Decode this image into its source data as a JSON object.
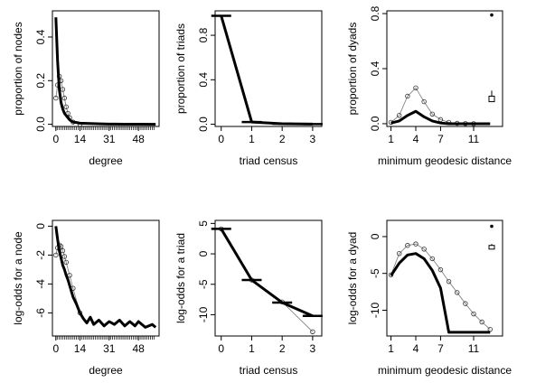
{
  "chart_data": [
    {
      "type": "line",
      "xlabel": "degree",
      "ylabel": "proportion of nodes",
      "x_ticks": [
        0,
        14,
        31,
        48
      ],
      "y_ticks": [
        0.0,
        0.2,
        0.4
      ],
      "y_tick_labels": [
        "0.0",
        "0.2",
        "0.4"
      ],
      "xlim": [
        -2,
        60
      ],
      "ylim": [
        -0.01,
        0.52
      ],
      "series": [
        {
          "x": [
            0,
            1,
            2,
            3,
            4,
            5,
            6,
            7,
            8,
            9,
            10,
            12,
            14,
            18,
            22,
            26,
            31,
            40,
            48,
            58
          ],
          "values": [
            0.49,
            0.29,
            0.16,
            0.1,
            0.07,
            0.05,
            0.04,
            0.03,
            0.02,
            0.015,
            0.01,
            0.008,
            0.005,
            0.004,
            0.003,
            0.002,
            0.001,
            0.0005,
            0.0002,
            0.0
          ]
        }
      ],
      "sim_mean": {
        "x": [
          0,
          1,
          2,
          3,
          4,
          5,
          6,
          7,
          8,
          10,
          14
        ],
        "values": [
          0.12,
          0.18,
          0.22,
          0.2,
          0.16,
          0.12,
          0.08,
          0.05,
          0.03,
          0.01,
          0.0
        ]
      }
    },
    {
      "type": "line",
      "xlabel": "triad census",
      "ylabel": "proportion of triads",
      "x_ticks": [
        0,
        1,
        2,
        3
      ],
      "y_ticks": [
        0.0,
        0.4,
        0.8
      ],
      "y_tick_labels": [
        "0.0",
        "0.4",
        "0.8"
      ],
      "xlim": [
        -0.2,
        3.3
      ],
      "ylim": [
        -0.02,
        1.02
      ],
      "series": [
        {
          "x": [
            0,
            1,
            2,
            3
          ],
          "values": [
            0.975,
            0.02,
            0.004,
            0.001
          ]
        }
      ]
    },
    {
      "type": "line",
      "xlabel": "minimum geodesic distance",
      "ylabel": "proportion of dyads",
      "x_ticks": [
        1,
        4,
        7,
        11
      ],
      "y_ticks": [
        0.0,
        0.4,
        0.8
      ],
      "y_tick_labels": [
        "0.0",
        "0.4",
        "0.8"
      ],
      "xlim": [
        0.5,
        14.5
      ],
      "ylim": [
        -0.02,
        0.82
      ],
      "series": [
        {
          "x": [
            1,
            2,
            3,
            4,
            5,
            6,
            7,
            8,
            9,
            10,
            11,
            12,
            13
          ],
          "values": [
            0.005,
            0.02,
            0.06,
            0.09,
            0.05,
            0.02,
            0.005,
            0.0,
            0.0,
            0.0,
            0.0,
            0.0,
            0.0
          ]
        }
      ],
      "sim_mean": {
        "x": [
          1,
          2,
          3,
          4,
          5,
          6,
          7,
          8,
          9,
          10,
          11
        ],
        "values": [
          0.01,
          0.06,
          0.2,
          0.26,
          0.16,
          0.07,
          0.03,
          0.01,
          0.003,
          0.001,
          0.0
        ]
      },
      "inf_point": {
        "obs": 0.79,
        "sim_box": [
          0.16,
          0.2
        ],
        "sim_max": 0.24
      }
    },
    {
      "type": "line",
      "xlabel": "degree",
      "ylabel": "log-odds for a node",
      "x_ticks": [
        0,
        14,
        31,
        48
      ],
      "y_ticks": [
        0,
        -2,
        -4,
        -6
      ],
      "y_tick_labels": [
        "0",
        "-2",
        "-4",
        "-6"
      ],
      "xlim": [
        -2,
        60
      ],
      "ylim": [
        -7.6,
        0.4
      ],
      "series": [
        {
          "x": [
            0,
            1,
            2,
            3,
            4,
            5,
            6,
            7,
            8,
            9,
            10,
            12,
            14,
            16,
            18,
            20,
            22,
            25,
            28,
            31,
            34,
            37,
            40,
            43,
            46,
            48,
            52,
            56,
            58
          ],
          "values": [
            0.0,
            -0.9,
            -1.7,
            -2.2,
            -2.7,
            -3.0,
            -3.4,
            -3.7,
            -4.1,
            -4.5,
            -4.9,
            -5.4,
            -6.0,
            -6.4,
            -6.7,
            -6.3,
            -6.8,
            -6.5,
            -6.9,
            -6.6,
            -6.8,
            -6.5,
            -6.9,
            -6.6,
            -6.9,
            -6.6,
            -7.0,
            -6.8,
            -7.0
          ]
        }
      ],
      "sim_mean": {
        "x": [
          0,
          1,
          2,
          3,
          4,
          5,
          6,
          8,
          10,
          14
        ],
        "values": [
          -2.0,
          -1.5,
          -1.3,
          -1.4,
          -1.7,
          -2.1,
          -2.5,
          -3.4,
          -4.3,
          -6.0
        ]
      }
    },
    {
      "type": "line",
      "xlabel": "triad census",
      "ylabel": "log-odds for a triad",
      "x_ticks": [
        0,
        1,
        2,
        3
      ],
      "y_ticks": [
        5,
        0,
        -5,
        -10
      ],
      "y_tick_labels": [
        "5",
        "0",
        "-5",
        "-10"
      ],
      "xlim": [
        -0.2,
        3.3
      ],
      "ylim": [
        -13.5,
        5.5
      ],
      "series": [
        {
          "x": [
            0,
            1,
            2,
            3
          ],
          "values": [
            4.1,
            -4.3,
            -8.0,
            -10.2
          ]
        }
      ],
      "sim_mean": {
        "x": [
          0,
          1,
          2,
          3
        ],
        "values": [
          4.1,
          -4.3,
          -7.9,
          -12.8
        ]
      }
    },
    {
      "type": "line",
      "xlabel": "minimum geodesic distance",
      "ylabel": "log-odds for a dyad",
      "x_ticks": [
        1,
        4,
        7,
        11
      ],
      "y_ticks": [
        0,
        -5,
        -10
      ],
      "y_tick_labels": [
        "0",
        "-5",
        "-10"
      ],
      "xlim": [
        0.5,
        14.5
      ],
      "ylim": [
        -13.5,
        2.2
      ],
      "series": [
        {
          "x": [
            1,
            2,
            3,
            4,
            5,
            6,
            7,
            8,
            9,
            10,
            11,
            12,
            13
          ],
          "values": [
            -5.3,
            -3.6,
            -2.5,
            -2.3,
            -3.0,
            -4.6,
            -7.0,
            -13.0,
            -13.0,
            -13.0,
            -13.0,
            -13.0,
            -13.0
          ]
        }
      ],
      "sim_mean": {
        "x": [
          1,
          2,
          3,
          4,
          5,
          6,
          7,
          8,
          9,
          10,
          11,
          12,
          13
        ],
        "values": [
          -5.2,
          -2.3,
          -1.2,
          -1.0,
          -1.7,
          -3.0,
          -4.5,
          -6.1,
          -7.6,
          -9.1,
          -10.5,
          -11.6,
          -12.6
        ]
      },
      "inf_point": {
        "obs": 1.4,
        "sim_box": [
          -1.7,
          -1.2
        ],
        "sim_max": -1.0
      }
    }
  ]
}
